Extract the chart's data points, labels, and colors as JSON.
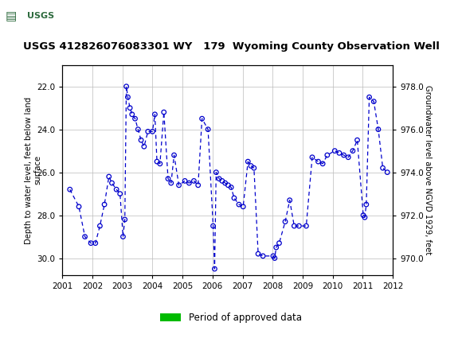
{
  "title": "USGS 412826076083301 WY   179  Wyoming County Observation Well",
  "ylabel_left": "Depth to water level, feet below land\nsurface",
  "ylabel_right": "Groundwater level above NGVD 1929, feet",
  "xlim": [
    2001.0,
    2012.0
  ],
  "ylim_left": [
    30.8,
    21.0
  ],
  "ylim_right": [
    969.2,
    979.0
  ],
  "yticks_left": [
    22.0,
    24.0,
    26.0,
    28.0,
    30.0
  ],
  "yticks_right": [
    970.0,
    972.0,
    974.0,
    976.0,
    978.0
  ],
  "xticks": [
    2001,
    2002,
    2003,
    2004,
    2005,
    2006,
    2007,
    2008,
    2009,
    2010,
    2011,
    2012
  ],
  "data_x": [
    2001.25,
    2001.55,
    2001.75,
    2001.95,
    2002.1,
    2002.25,
    2002.4,
    2002.55,
    2002.65,
    2002.8,
    2002.92,
    2003.02,
    2003.08,
    2003.13,
    2003.18,
    2003.25,
    2003.32,
    2003.42,
    2003.52,
    2003.62,
    2003.72,
    2003.85,
    2004.0,
    2004.08,
    2004.15,
    2004.25,
    2004.38,
    2004.52,
    2004.62,
    2004.72,
    2004.88,
    2005.08,
    2005.22,
    2005.38,
    2005.52,
    2005.65,
    2005.85,
    2006.02,
    2006.07,
    2006.12,
    2006.22,
    2006.32,
    2006.42,
    2006.52,
    2006.62,
    2006.72,
    2006.88,
    2007.02,
    2007.18,
    2007.28,
    2007.38,
    2007.52,
    2007.68,
    2008.02,
    2008.07,
    2008.12,
    2008.22,
    2008.42,
    2008.57,
    2008.72,
    2008.88,
    2009.12,
    2009.32,
    2009.52,
    2009.67,
    2009.82,
    2010.07,
    2010.22,
    2010.37,
    2010.52,
    2010.67,
    2010.82,
    2011.02,
    2011.07,
    2011.12,
    2011.22,
    2011.37,
    2011.52,
    2011.67,
    2011.82
  ],
  "data_y": [
    26.8,
    27.6,
    29.0,
    29.3,
    29.3,
    28.5,
    27.5,
    26.2,
    26.5,
    26.8,
    27.0,
    29.0,
    28.2,
    22.0,
    22.5,
    23.0,
    23.3,
    23.5,
    24.0,
    24.5,
    24.8,
    24.1,
    24.1,
    23.3,
    25.5,
    25.6,
    23.2,
    26.3,
    26.5,
    25.2,
    26.6,
    26.4,
    26.5,
    26.4,
    26.6,
    23.5,
    24.0,
    28.5,
    30.5,
    26.0,
    26.3,
    26.4,
    26.5,
    26.6,
    26.7,
    27.2,
    27.5,
    27.6,
    25.5,
    25.7,
    25.8,
    29.8,
    29.9,
    29.9,
    30.0,
    29.5,
    29.3,
    28.3,
    27.3,
    28.5,
    28.5,
    28.5,
    25.3,
    25.5,
    25.6,
    25.2,
    25.0,
    25.1,
    25.2,
    25.3,
    25.0,
    24.5,
    28.0,
    28.1,
    27.5,
    22.5,
    22.7,
    24.0,
    25.8,
    26.0
  ],
  "marker_color": "#0000CC",
  "line_color": "#0000CC",
  "approved_bar_color": "#00BB00",
  "background_color": "#ffffff",
  "grid_color": "#bbbbbb",
  "header_bg_color": "#2E6B3E",
  "legend_label": "Period of approved data"
}
